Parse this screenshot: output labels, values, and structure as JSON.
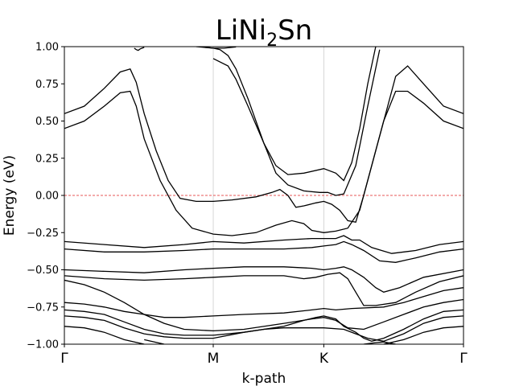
{
  "chart_data": {
    "type": "line",
    "title": {
      "main": "LiNi",
      "sub": "2",
      "tail": "Sn"
    },
    "xlabel": "k-path",
    "ylabel": "Energy (eV)",
    "ylim": [
      -1.0,
      1.0
    ],
    "xlim": [
      0,
      1
    ],
    "y_ticks": [
      {
        "value": -1.0,
        "label": "−1.00"
      },
      {
        "value": -0.75,
        "label": "−0.75"
      },
      {
        "value": -0.5,
        "label": "−0.50"
      },
      {
        "value": -0.25,
        "label": "−0.25"
      },
      {
        "value": 0.0,
        "label": "0.00"
      },
      {
        "value": 0.25,
        "label": "0.25"
      },
      {
        "value": 0.5,
        "label": "0.50"
      },
      {
        "value": 0.75,
        "label": "0.75"
      },
      {
        "value": 1.0,
        "label": "1.00"
      }
    ],
    "kpoints": [
      {
        "x": 0.0,
        "label": "Γ"
      },
      {
        "x": 0.373,
        "label": "M"
      },
      {
        "x": 0.65,
        "label": "K"
      },
      {
        "x": 1.0,
        "label": "Γ"
      }
    ],
    "fermi_level": 0.0,
    "colors": {
      "band": "#000000",
      "fermi": "#e02020",
      "vline": "#cccccc"
    },
    "series": [
      {
        "points": [
          [
            0,
            0.45
          ],
          [
            0.05,
            0.5
          ],
          [
            0.1,
            0.6
          ],
          [
            0.14,
            0.69
          ],
          [
            0.165,
            0.7
          ],
          [
            0.18,
            0.6
          ],
          [
            0.2,
            0.38
          ],
          [
            0.24,
            0.1
          ],
          [
            0.28,
            -0.1
          ],
          [
            0.32,
            -0.22
          ],
          [
            0.373,
            -0.26
          ],
          [
            0.42,
            -0.27
          ],
          [
            0.48,
            -0.25
          ],
          [
            0.53,
            -0.2
          ],
          [
            0.57,
            -0.17
          ],
          [
            0.6,
            -0.19
          ],
          [
            0.62,
            -0.235
          ],
          [
            0.65,
            -0.25
          ],
          [
            0.68,
            -0.24
          ],
          [
            0.71,
            -0.22
          ],
          [
            0.74,
            -0.1
          ],
          [
            0.77,
            0.2
          ],
          [
            0.8,
            0.5
          ],
          [
            0.83,
            0.7
          ],
          [
            0.86,
            0.7
          ],
          [
            0.9,
            0.62
          ],
          [
            0.95,
            0.5
          ],
          [
            1,
            0.45
          ]
        ]
      },
      {
        "points": [
          [
            0,
            0.55
          ],
          [
            0.05,
            0.6
          ],
          [
            0.1,
            0.72
          ],
          [
            0.14,
            0.83
          ],
          [
            0.165,
            0.85
          ],
          [
            0.18,
            0.76
          ],
          [
            0.2,
            0.55
          ],
          [
            0.23,
            0.3
          ],
          [
            0.26,
            0.1
          ],
          [
            0.29,
            -0.02
          ],
          [
            0.33,
            -0.04
          ],
          [
            0.373,
            -0.04
          ],
          [
            0.42,
            -0.03
          ],
          [
            0.48,
            -0.01
          ],
          [
            0.52,
            0.02
          ],
          [
            0.54,
            0.04
          ],
          [
            0.56,
            0.0
          ],
          [
            0.58,
            -0.08
          ],
          [
            0.6,
            -0.07
          ],
          [
            0.63,
            -0.05
          ],
          [
            0.65,
            -0.04
          ],
          [
            0.67,
            -0.06
          ],
          [
            0.69,
            -0.1
          ],
          [
            0.71,
            -0.17
          ],
          [
            0.73,
            -0.18
          ],
          [
            0.75,
            0.0
          ],
          [
            0.78,
            0.3
          ],
          [
            0.81,
            0.6
          ],
          [
            0.83,
            0.8
          ],
          [
            0.86,
            0.87
          ],
          [
            0.9,
            0.75
          ],
          [
            0.95,
            0.6
          ],
          [
            1,
            0.55
          ]
        ]
      },
      {
        "points": [
          [
            0.373,
            0.92
          ],
          [
            0.41,
            0.87
          ],
          [
            0.43,
            0.78
          ],
          [
            0.46,
            0.6
          ],
          [
            0.5,
            0.35
          ],
          [
            0.53,
            0.2
          ],
          [
            0.56,
            0.14
          ],
          [
            0.6,
            0.15
          ],
          [
            0.65,
            0.18
          ],
          [
            0.68,
            0.15
          ],
          [
            0.7,
            0.1
          ],
          [
            0.72,
            0.22
          ],
          [
            0.74,
            0.45
          ],
          [
            0.76,
            0.75
          ],
          [
            0.78,
            1.0
          ]
        ]
      },
      {
        "points": [
          [
            0.33,
            1.0
          ],
          [
            0.373,
            0.99
          ],
          [
            0.39,
            0.98
          ],
          [
            0.41,
            0.94
          ],
          [
            0.43,
            0.85
          ],
          [
            0.46,
            0.65
          ],
          [
            0.5,
            0.35
          ],
          [
            0.53,
            0.15
          ],
          [
            0.56,
            0.07
          ],
          [
            0.6,
            0.03
          ],
          [
            0.64,
            0.02
          ],
          [
            0.66,
            0.02
          ],
          [
            0.68,
            0.0
          ],
          [
            0.7,
            0.01
          ],
          [
            0.73,
            0.2
          ],
          [
            0.76,
            0.6
          ],
          [
            0.79,
            0.98
          ]
        ]
      },
      {
        "points": [
          [
            0.175,
            0.99
          ],
          [
            0.18,
            0.98
          ],
          [
            0.185,
            0.975
          ],
          [
            0.19,
            0.985
          ],
          [
            0.2,
            0.995
          ]
        ]
      },
      {
        "points": [
          [
            0.34,
            1.0
          ],
          [
            0.373,
            0.99
          ],
          [
            0.4,
            0.99
          ],
          [
            0.43,
            0.998
          ]
        ]
      },
      {
        "points": [
          [
            0,
            -0.31
          ],
          [
            0.1,
            -0.33
          ],
          [
            0.2,
            -0.35
          ],
          [
            0.3,
            -0.33
          ],
          [
            0.373,
            -0.31
          ],
          [
            0.45,
            -0.32
          ],
          [
            0.55,
            -0.3
          ],
          [
            0.62,
            -0.29
          ],
          [
            0.65,
            -0.29
          ],
          [
            0.68,
            -0.29
          ],
          [
            0.7,
            -0.27
          ],
          [
            0.72,
            -0.3
          ],
          [
            0.74,
            -0.3
          ],
          [
            0.77,
            -0.35
          ],
          [
            0.82,
            -0.39
          ],
          [
            0.88,
            -0.37
          ],
          [
            0.94,
            -0.33
          ],
          [
            1,
            -0.31
          ]
        ]
      },
      {
        "points": [
          [
            0,
            -0.36
          ],
          [
            0.1,
            -0.38
          ],
          [
            0.2,
            -0.38
          ],
          [
            0.3,
            -0.37
          ],
          [
            0.373,
            -0.36
          ],
          [
            0.45,
            -0.36
          ],
          [
            0.55,
            -0.36
          ],
          [
            0.62,
            -0.35
          ],
          [
            0.65,
            -0.34
          ],
          [
            0.68,
            -0.33
          ],
          [
            0.7,
            -0.31
          ],
          [
            0.72,
            -0.33
          ],
          [
            0.75,
            -0.37
          ],
          [
            0.79,
            -0.44
          ],
          [
            0.83,
            -0.45
          ],
          [
            0.88,
            -0.42
          ],
          [
            0.94,
            -0.38
          ],
          [
            1,
            -0.36
          ]
        ]
      },
      {
        "points": [
          [
            0,
            -0.5
          ],
          [
            0.1,
            -0.51
          ],
          [
            0.2,
            -0.52
          ],
          [
            0.3,
            -0.5
          ],
          [
            0.373,
            -0.49
          ],
          [
            0.45,
            -0.48
          ],
          [
            0.55,
            -0.48
          ],
          [
            0.62,
            -0.49
          ],
          [
            0.65,
            -0.5
          ],
          [
            0.68,
            -0.49
          ],
          [
            0.7,
            -0.48
          ],
          [
            0.72,
            -0.5
          ],
          [
            0.75,
            -0.55
          ],
          [
            0.78,
            -0.62
          ],
          [
            0.8,
            -0.65
          ],
          [
            0.84,
            -0.62
          ],
          [
            0.9,
            -0.55
          ],
          [
            1,
            -0.5
          ]
        ]
      },
      {
        "points": [
          [
            0,
            -0.54
          ],
          [
            0.1,
            -0.56
          ],
          [
            0.2,
            -0.57
          ],
          [
            0.3,
            -0.56
          ],
          [
            0.373,
            -0.55
          ],
          [
            0.45,
            -0.54
          ],
          [
            0.55,
            -0.54
          ],
          [
            0.6,
            -0.56
          ],
          [
            0.63,
            -0.55
          ],
          [
            0.66,
            -0.53
          ],
          [
            0.69,
            -0.52
          ],
          [
            0.71,
            -0.56
          ],
          [
            0.73,
            -0.65
          ],
          [
            0.75,
            -0.74
          ],
          [
            0.78,
            -0.74
          ],
          [
            0.83,
            -0.72
          ],
          [
            0.88,
            -0.65
          ],
          [
            0.94,
            -0.58
          ],
          [
            1,
            -0.54
          ]
        ]
      },
      {
        "points": [
          [
            0,
            -0.72
          ],
          [
            0.05,
            -0.73
          ],
          [
            0.1,
            -0.75
          ],
          [
            0.15,
            -0.78
          ],
          [
            0.2,
            -0.8
          ],
          [
            0.25,
            -0.82
          ],
          [
            0.3,
            -0.82
          ],
          [
            0.373,
            -0.81
          ],
          [
            0.45,
            -0.8
          ],
          [
            0.55,
            -0.79
          ],
          [
            0.62,
            -0.77
          ],
          [
            0.65,
            -0.76
          ],
          [
            0.68,
            -0.77
          ],
          [
            0.72,
            -0.76
          ],
          [
            0.8,
            -0.75
          ],
          [
            0.85,
            -0.72
          ],
          [
            0.9,
            -0.68
          ],
          [
            0.95,
            -0.64
          ],
          [
            1,
            -0.62
          ]
        ]
      },
      {
        "points": [
          [
            0,
            -0.57
          ],
          [
            0.05,
            -0.6
          ],
          [
            0.1,
            -0.65
          ],
          [
            0.15,
            -0.72
          ],
          [
            0.2,
            -0.8
          ],
          [
            0.25,
            -0.86
          ],
          [
            0.3,
            -0.9
          ],
          [
            0.373,
            -0.91
          ],
          [
            0.45,
            -0.9
          ],
          [
            0.55,
            -0.86
          ],
          [
            0.62,
            -0.83
          ],
          [
            0.65,
            -0.82
          ],
          [
            0.68,
            -0.84
          ],
          [
            0.71,
            -0.89
          ],
          [
            0.75,
            -0.9
          ],
          [
            0.8,
            -0.85
          ],
          [
            0.85,
            -0.8
          ],
          [
            0.9,
            -0.75
          ],
          [
            0.95,
            -0.72
          ],
          [
            1,
            -0.7
          ]
        ]
      },
      {
        "points": [
          [
            0,
            -0.77
          ],
          [
            0.05,
            -0.78
          ],
          [
            0.1,
            -0.8
          ],
          [
            0.15,
            -0.85
          ],
          [
            0.2,
            -0.9
          ],
          [
            0.25,
            -0.93
          ],
          [
            0.3,
            -0.94
          ],
          [
            0.373,
            -0.94
          ],
          [
            0.45,
            -0.92
          ],
          [
            0.55,
            -0.88
          ],
          [
            0.6,
            -0.84
          ],
          [
            0.63,
            -0.82
          ],
          [
            0.65,
            -0.81
          ],
          [
            0.68,
            -0.83
          ],
          [
            0.7,
            -0.88
          ],
          [
            0.73,
            -0.92
          ],
          [
            0.75,
            -0.96
          ],
          [
            0.77,
            -0.98
          ],
          [
            0.8,
            -0.96
          ],
          [
            0.85,
            -0.9
          ],
          [
            0.9,
            -0.83
          ],
          [
            0.95,
            -0.78
          ],
          [
            1,
            -0.77
          ]
        ]
      },
      {
        "points": [
          [
            0,
            -0.81
          ],
          [
            0.05,
            -0.82
          ],
          [
            0.1,
            -0.84
          ],
          [
            0.15,
            -0.89
          ],
          [
            0.2,
            -0.93
          ],
          [
            0.25,
            -0.95
          ],
          [
            0.3,
            -0.96
          ],
          [
            0.373,
            -0.96
          ],
          [
            0.45,
            -0.92
          ],
          [
            0.5,
            -0.9
          ],
          [
            0.55,
            -0.89
          ],
          [
            0.62,
            -0.89
          ],
          [
            0.65,
            -0.89
          ],
          [
            0.7,
            -0.9
          ],
          [
            0.73,
            -0.93
          ],
          [
            0.76,
            -0.96
          ],
          [
            0.8,
            -0.98
          ],
          [
            0.85,
            -0.93
          ],
          [
            0.9,
            -0.86
          ],
          [
            0.95,
            -0.82
          ],
          [
            1,
            -0.81
          ]
        ]
      },
      {
        "points": [
          [
            0,
            -0.88
          ],
          [
            0.05,
            -0.89
          ],
          [
            0.1,
            -0.92
          ],
          [
            0.15,
            -0.97
          ],
          [
            0.2,
            -1.0
          ]
        ]
      },
      {
        "points": [
          [
            0.2,
            -0.97
          ],
          [
            0.25,
            -1.0
          ]
        ]
      },
      {
        "points": [
          [
            0.75,
            -1.0
          ],
          [
            0.78,
            -0.99
          ],
          [
            0.8,
            -0.985
          ],
          [
            0.83,
            -1.0
          ]
        ]
      },
      {
        "points": [
          [
            0.8,
            -1.0
          ],
          [
            0.85,
            -0.97
          ],
          [
            0.9,
            -0.92
          ],
          [
            0.95,
            -0.89
          ],
          [
            1,
            -0.88
          ]
        ]
      }
    ]
  }
}
